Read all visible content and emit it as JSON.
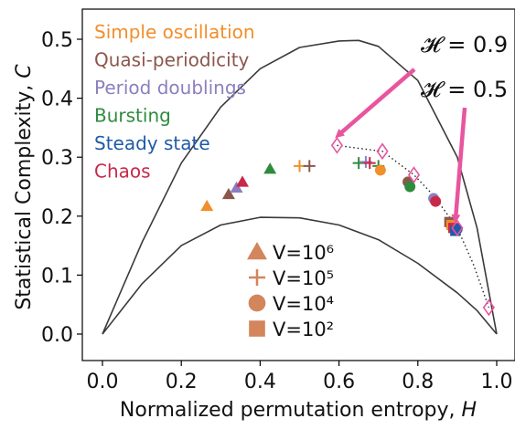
{
  "chart_data": {
    "type": "scatter",
    "title": "",
    "xlabel": "Normalized permutation entropy, ",
    "xlabel_var": "H",
    "ylabel": "Statistical Complexity, ",
    "ylabel_var": "C",
    "xlim": [
      -0.05,
      1.04
    ],
    "ylim": [
      -0.04,
      0.54
    ],
    "x_ticks": [
      0.0,
      0.2,
      0.4,
      0.6,
      0.8,
      1.0
    ],
    "x_tick_labels": [
      "0.0",
      "0.2",
      "0.4",
      "0.6",
      "0.8",
      "1.0"
    ],
    "y_ticks": [
      0.0,
      0.1,
      0.2,
      0.3,
      0.4,
      0.5
    ],
    "y_tick_labels": [
      "0.0",
      "0.1",
      "0.2",
      "0.3",
      "0.4",
      "0.5"
    ],
    "grid": false,
    "colors": {
      "bound_line": "#3a3a3a",
      "arrow": "#e8559f",
      "diamond": "#e8559f",
      "dotted": "#222222"
    },
    "bounds": {
      "upper": [
        [
          0.0,
          0.0
        ],
        [
          0.1,
          0.155
        ],
        [
          0.2,
          0.29
        ],
        [
          0.3,
          0.385
        ],
        [
          0.4,
          0.45
        ],
        [
          0.5,
          0.486
        ],
        [
          0.6,
          0.497
        ],
        [
          0.65,
          0.498
        ],
        [
          0.7,
          0.488
        ],
        [
          0.8,
          0.43
        ],
        [
          0.9,
          0.3
        ],
        [
          0.95,
          0.18
        ],
        [
          1.0,
          0.0
        ]
      ],
      "lower": [
        [
          0.0,
          0.0
        ],
        [
          0.1,
          0.085
        ],
        [
          0.2,
          0.15
        ],
        [
          0.3,
          0.185
        ],
        [
          0.4,
          0.198
        ],
        [
          0.5,
          0.197
        ],
        [
          0.6,
          0.185
        ],
        [
          0.7,
          0.16
        ],
        [
          0.8,
          0.12
        ],
        [
          0.9,
          0.07
        ],
        [
          0.95,
          0.04
        ],
        [
          1.0,
          0.0
        ]
      ]
    },
    "category_legend": [
      {
        "name": "Simple oscillation",
        "color": "#f28e2b"
      },
      {
        "name": "Quasi-periodicity",
        "color": "#8c564b"
      },
      {
        "name": "Period doublings",
        "color": "#8c7fbf"
      },
      {
        "name": "Bursting",
        "color": "#2e8b3e"
      },
      {
        "name": "Steady state",
        "color": "#1f5aa8"
      },
      {
        "name": "Chaos",
        "color": "#c9284a"
      }
    ],
    "marker_legend": [
      {
        "marker": "triangle",
        "label": "V=10⁶"
      },
      {
        "marker": "plus",
        "label": "V=10⁵"
      },
      {
        "marker": "circle",
        "label": "V=10⁴"
      },
      {
        "marker": "square",
        "label": "V=10²"
      }
    ],
    "marker_legend_color": "#d3855b",
    "points": [
      {
        "x": 0.265,
        "y": 0.217,
        "marker": "triangle",
        "category": "Simple oscillation"
      },
      {
        "x": 0.32,
        "y": 0.237,
        "marker": "triangle",
        "category": "Quasi-periodicity"
      },
      {
        "x": 0.34,
        "y": 0.248,
        "marker": "triangle",
        "category": "Period doublings"
      },
      {
        "x": 0.355,
        "y": 0.258,
        "marker": "triangle",
        "category": "Chaos"
      },
      {
        "x": 0.425,
        "y": 0.28,
        "marker": "triangle",
        "category": "Bursting"
      },
      {
        "x": 0.5,
        "y": 0.285,
        "marker": "plus",
        "category": "Simple oscillation"
      },
      {
        "x": 0.525,
        "y": 0.285,
        "marker": "plus",
        "category": "Quasi-periodicity"
      },
      {
        "x": 0.65,
        "y": 0.29,
        "marker": "plus",
        "category": "Bursting"
      },
      {
        "x": 0.668,
        "y": 0.292,
        "marker": "plus",
        "category": "Period doublings"
      },
      {
        "x": 0.678,
        "y": 0.29,
        "marker": "plus",
        "category": "Chaos"
      },
      {
        "x": 0.7,
        "y": 0.285,
        "marker": "plus",
        "category": "Bursting"
      },
      {
        "x": 0.705,
        "y": 0.278,
        "marker": "circle",
        "category": "Simple oscillation"
      },
      {
        "x": 0.775,
        "y": 0.258,
        "marker": "circle",
        "category": "Quasi-periodicity"
      },
      {
        "x": 0.78,
        "y": 0.25,
        "marker": "circle",
        "category": "Bursting"
      },
      {
        "x": 0.84,
        "y": 0.23,
        "marker": "circle",
        "category": "Period doublings"
      },
      {
        "x": 0.845,
        "y": 0.225,
        "marker": "circle",
        "category": "Chaos"
      },
      {
        "x": 0.88,
        "y": 0.19,
        "marker": "square",
        "category": "Quasi-periodicity"
      },
      {
        "x": 0.885,
        "y": 0.185,
        "marker": "square",
        "category": "Simple oscillation"
      },
      {
        "x": 0.89,
        "y": 0.18,
        "marker": "square",
        "category": "Chaos"
      },
      {
        "x": 0.895,
        "y": 0.175,
        "marker": "square",
        "category": "Steady state"
      },
      {
        "x": 0.9,
        "y": 0.178,
        "marker": "circle",
        "category": "Steady state"
      }
    ],
    "diamonds": [
      {
        "x": 0.595,
        "y": 0.32
      },
      {
        "x": 0.71,
        "y": 0.31
      },
      {
        "x": 0.79,
        "y": 0.27
      },
      {
        "x": 0.9,
        "y": 0.18
      },
      {
        "x": 0.98,
        "y": 0.045
      }
    ],
    "dotted_curve": [
      [
        0.595,
        0.32
      ],
      [
        0.65,
        0.315
      ],
      [
        0.71,
        0.31
      ],
      [
        0.75,
        0.29
      ],
      [
        0.79,
        0.27
      ],
      [
        0.84,
        0.235
      ],
      [
        0.9,
        0.18
      ],
      [
        0.94,
        0.12
      ],
      [
        0.98,
        0.045
      ]
    ],
    "annotations": [
      {
        "label": "𝓗 = 0.9",
        "points_to": {
          "x": 0.595,
          "y": 0.32
        }
      },
      {
        "label": "𝓗 = 0.5",
        "points_to": {
          "x": 0.9,
          "y": 0.185
        }
      }
    ]
  }
}
